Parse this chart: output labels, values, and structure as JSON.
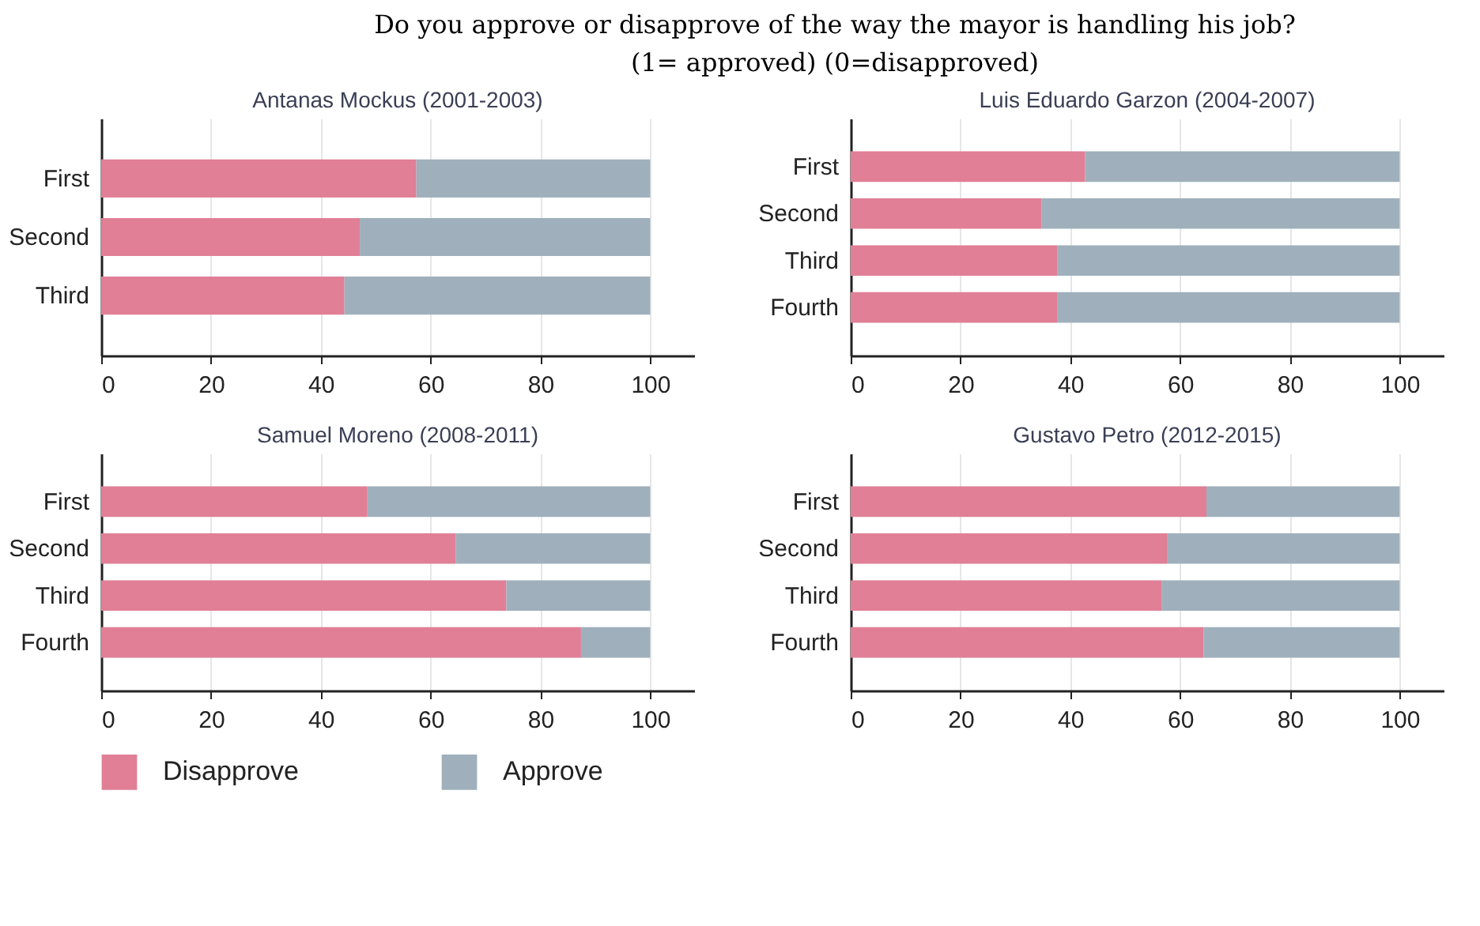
{
  "chart_data": [
    {
      "type": "bar",
      "orientation": "horizontal",
      "stacked": true,
      "title": "Antanas Mockus (2001-2003)",
      "annotations": [
        "Do you approve or disapprove of the way the mayor is handling his job?",
        "(1= approved) (0=disapproved)"
      ],
      "categories": [
        "First",
        "Second",
        "Third"
      ],
      "series": [
        {
          "name": "Disapprove",
          "color": "#e07f96",
          "values": [
            57.4,
            47.1,
            44.3
          ]
        },
        {
          "name": "Approve",
          "color": "#9fb0bc",
          "values": [
            42.6,
            52.9,
            55.7
          ]
        }
      ],
      "xlim": [
        0,
        108
      ],
      "xticks": [
        0,
        20,
        40,
        60,
        80,
        100
      ],
      "grid": "x",
      "legend": "bottom"
    },
    {
      "type": "bar",
      "orientation": "horizontal",
      "stacked": true,
      "title": "Luis Eduardo Garzon (2004-2007)",
      "categories": [
        "First",
        "Second",
        "Third",
        "Fourth"
      ],
      "series": [
        {
          "name": "Disapprove",
          "color": "#e07f96",
          "values": [
            42.7,
            34.8,
            37.6,
            37.7
          ]
        },
        {
          "name": "Approve",
          "color": "#9fb0bc",
          "values": [
            57.3,
            65.2,
            62.4,
            62.3
          ]
        }
      ],
      "xlim": [
        0,
        108
      ],
      "xticks": [
        0,
        20,
        40,
        60,
        80,
        100
      ],
      "grid": "x",
      "legend": "bottom"
    },
    {
      "type": "bar",
      "orientation": "horizontal",
      "stacked": true,
      "title": "Samuel Moreno (2008-2011)",
      "categories": [
        "First",
        "Second",
        "Third",
        "Fourth"
      ],
      "series": [
        {
          "name": "Disapprove",
          "color": "#e07f96",
          "values": [
            48.5,
            64.6,
            73.8,
            87.4
          ]
        },
        {
          "name": "Approve",
          "color": "#9fb0bc",
          "values": [
            51.5,
            35.4,
            26.2,
            12.6
          ]
        }
      ],
      "xlim": [
        0,
        108
      ],
      "xticks": [
        0,
        20,
        40,
        60,
        80,
        100
      ],
      "grid": "x",
      "legend": "bottom"
    },
    {
      "type": "bar",
      "orientation": "horizontal",
      "stacked": true,
      "title": "Gustavo Petro (2012-2015)",
      "categories": [
        "First",
        "Second",
        "Third",
        "Fourth"
      ],
      "series": [
        {
          "name": "Disapprove",
          "color": "#e07f96",
          "values": [
            64.8,
            57.6,
            56.7,
            64.3
          ]
        },
        {
          "name": "Approve",
          "color": "#9fb0bc",
          "values": [
            35.2,
            42.4,
            43.3,
            35.7
          ]
        }
      ],
      "xlim": [
        0,
        108
      ],
      "xticks": [
        0,
        20,
        40,
        60,
        80,
        100
      ],
      "grid": "x",
      "legend": "bottom"
    }
  ]
}
